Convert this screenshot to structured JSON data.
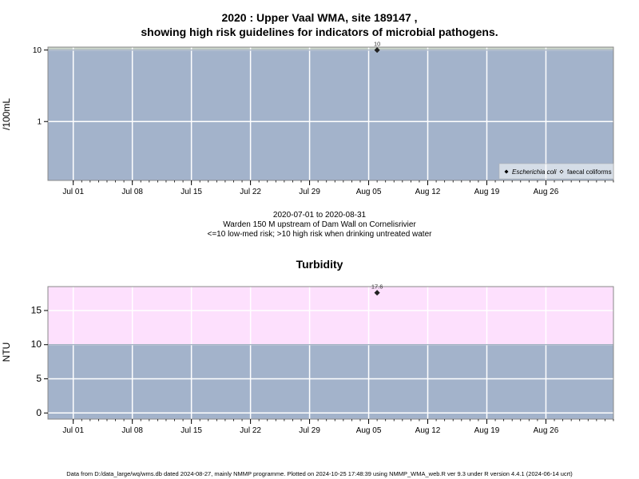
{
  "header": {
    "title_line1": "2020 : Upper Vaal WMA, site 189147 ,",
    "title_line2": "showing high risk guidelines for indicators of microbial pathogens."
  },
  "middle": {
    "date_range": "2020-07-01 to 2020-08-31",
    "site_desc": "Warden 150 M upstream of Dam Wall on Cornelisrivier",
    "risk_note": "<=10 low-med risk; >10 high risk when drinking untreated water"
  },
  "footer": {
    "text": "Data from D:/data_large/wq/wms.db dated 2024-08-27, mainly NMMP programme. Plotted on 2024-10-25 17:48:39 using NMMP_WMA_web.R ver 9.3 under R version 4.4.1 (2024-06-14 ucrt)"
  },
  "colors": {
    "panel_bg": "#a3b3cb",
    "high_band_top": "#c8d2c8",
    "high_band_bottom": "#fde0fd",
    "grid": "#ffffff",
    "point": "#222222"
  },
  "chart_data": [
    {
      "type": "scatter",
      "title": "",
      "ylabel": "/100mL",
      "yscale": "log",
      "ylim": [
        0.15,
        11
      ],
      "yticks": [
        1,
        10
      ],
      "ytick_labels": [
        "1",
        "10"
      ],
      "xlim": [
        "2020-06-28",
        "2020-09-03"
      ],
      "xticks": [
        "2020-07-01",
        "2020-07-08",
        "2020-07-15",
        "2020-07-22",
        "2020-07-29",
        "2020-08-05",
        "2020-08-12",
        "2020-08-19",
        "2020-08-26"
      ],
      "xtick_labels": [
        "Jul 01",
        "Jul 08",
        "Jul 15",
        "Jul 22",
        "Jul 29",
        "Aug 05",
        "Aug 12",
        "Aug 19",
        "Aug 26"
      ],
      "guideline": 10,
      "grid": true,
      "legend_position": "bottom-right",
      "series": [
        {
          "name": "Escherichia coli",
          "marker": "diamond-filled",
          "x": [
            "2020-08-06"
          ],
          "y": [
            10
          ],
          "labels": [
            "10"
          ]
        },
        {
          "name": "faecal coliforms",
          "marker": "diamond-open",
          "x": [],
          "y": [],
          "labels": []
        }
      ]
    },
    {
      "type": "scatter",
      "title": "Turbidity",
      "ylabel": "NTU",
      "yscale": "linear",
      "ylim": [
        -0.9,
        18.5
      ],
      "yticks": [
        0,
        5,
        10,
        15
      ],
      "ytick_labels": [
        "0",
        "5",
        "10",
        "15"
      ],
      "xlim": [
        "2020-06-28",
        "2020-09-03"
      ],
      "xticks": [
        "2020-07-01",
        "2020-07-08",
        "2020-07-15",
        "2020-07-22",
        "2020-07-29",
        "2020-08-05",
        "2020-08-12",
        "2020-08-19",
        "2020-08-26"
      ],
      "xtick_labels": [
        "Jul 01",
        "Jul 08",
        "Jul 15",
        "Jul 22",
        "Jul 29",
        "Aug 05",
        "Aug 12",
        "Aug 19",
        "Aug 26"
      ],
      "guideline": 10,
      "grid": true,
      "series": [
        {
          "name": "",
          "marker": "diamond-filled",
          "x": [
            "2020-08-06"
          ],
          "y": [
            17.6
          ],
          "labels": [
            "17.6"
          ]
        }
      ]
    }
  ]
}
